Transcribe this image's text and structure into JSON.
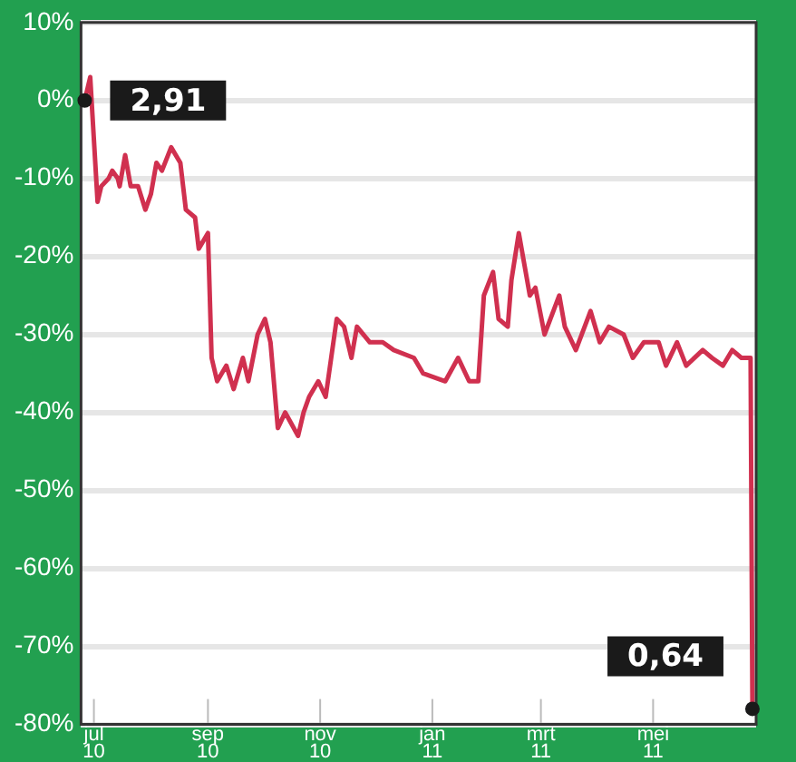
{
  "chart_data": {
    "type": "line",
    "x": [
      "2010-06-26",
      "2010-06-29",
      "2010-07-01",
      "2010-07-03",
      "2010-07-05",
      "2010-07-09",
      "2010-07-11",
      "2010-07-14",
      "2010-07-15",
      "2010-07-18",
      "2010-07-21",
      "2010-07-25",
      "2010-07-29",
      "2010-08-01",
      "2010-08-04",
      "2010-08-07",
      "2010-08-12",
      "2010-08-17",
      "2010-08-20",
      "2010-08-25",
      "2010-08-27",
      "2010-09-01",
      "2010-09-03",
      "2010-09-06",
      "2010-09-11",
      "2010-09-15",
      "2010-09-20",
      "2010-09-23",
      "2010-09-28",
      "2010-10-02",
      "2010-10-05",
      "2010-10-09",
      "2010-10-13",
      "2010-10-20",
      "2010-10-23",
      "2010-10-26",
      "2010-10-31",
      "2010-11-04",
      "2010-11-07",
      "2010-11-10",
      "2010-11-14",
      "2010-11-18",
      "2010-11-21",
      "2010-11-28",
      "2010-12-05",
      "2010-12-11",
      "2010-12-22",
      "2010-12-27",
      "2011-01-08",
      "2011-01-15",
      "2011-01-21",
      "2011-01-26",
      "2011-01-29",
      "2011-02-03",
      "2011-02-06",
      "2011-02-11",
      "2011-02-13",
      "2011-02-17",
      "2011-02-20",
      "2011-02-23",
      "2011-02-26",
      "2011-03-03",
      "2011-03-11",
      "2011-03-14",
      "2011-03-20",
      "2011-03-28",
      "2011-04-02",
      "2011-04-07",
      "2011-04-15",
      "2011-04-20",
      "2011-04-26",
      "2011-05-04",
      "2011-05-08",
      "2011-05-14",
      "2011-05-19",
      "2011-05-28",
      "2011-06-02",
      "2011-06-08",
      "2011-06-13",
      "2011-06-18",
      "2011-06-23",
      "2011-06-24"
    ],
    "series": [
      {
        "color": "#d0304f",
        "values": [
          0,
          3,
          -5,
          -13,
          -11,
          -10,
          -9,
          -10,
          -11,
          -7,
          -11,
          -11,
          -14,
          -12,
          -8,
          -9,
          -6,
          -8,
          -14,
          -15,
          -19,
          -17,
          -33,
          -36,
          -34,
          -37,
          -33,
          -36,
          -30,
          -28,
          -31,
          -42,
          -40,
          -43,
          -40,
          -38,
          -36,
          -38,
          -33,
          -28,
          -29,
          -33,
          -29,
          -31,
          -31,
          -32,
          -33,
          -35,
          -36,
          -33,
          -36,
          -36,
          -25,
          -22,
          -28,
          -29,
          -23,
          -17,
          -21,
          -25,
          -24,
          -30,
          -25,
          -29,
          -32,
          -27,
          -31,
          -29,
          -30,
          -33,
          -31,
          -31,
          -34,
          -31,
          -34,
          -32,
          -33,
          -34,
          -32,
          -33,
          -33,
          -78
        ]
      }
    ],
    "xlim": [
      "2010-06-24",
      "2011-06-26"
    ],
    "xticks": [
      {
        "value": "2010-07-01",
        "label": "jul\n10"
      },
      {
        "value": "2010-09-01",
        "label": "sep\n10"
      },
      {
        "value": "2010-11-01",
        "label": "nov\n10"
      },
      {
        "value": "2011-01-01",
        "label": "jan\n11"
      },
      {
        "value": "2011-03-01",
        "label": "mrt\n11"
      },
      {
        "value": "2011-05-01",
        "label": "mei\n11"
      }
    ],
    "ylim": [
      -80,
      10
    ],
    "yticks": [
      {
        "value": 10,
        "label": "10%"
      },
      {
        "value": 0,
        "label": "0%"
      },
      {
        "value": -10,
        "label": "-10%"
      },
      {
        "value": -20,
        "label": "-20%"
      },
      {
        "value": -30,
        "label": "-30%"
      },
      {
        "value": -40,
        "label": "-40%"
      },
      {
        "value": -50,
        "label": "-50%"
      },
      {
        "value": -60,
        "label": "-60%"
      },
      {
        "value": -70,
        "label": "-70%"
      },
      {
        "value": -80,
        "label": "-80%"
      }
    ],
    "grid": "y",
    "legend": false,
    "marker": "none",
    "line_style": "solid",
    "annotations": [
      {
        "text": "2,91",
        "x": "2010-06-26",
        "y": 0
      },
      {
        "text": "0,64",
        "x": "2011-06-24",
        "y": -78
      }
    ]
  }
}
